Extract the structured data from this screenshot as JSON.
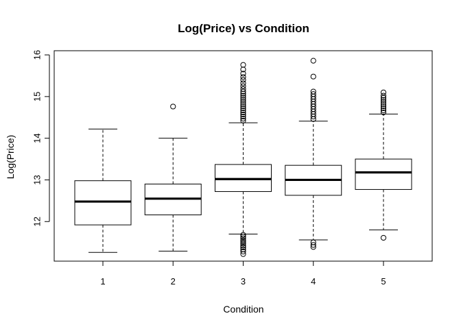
{
  "chart_data": {
    "type": "boxplot",
    "title": "Log(Price) vs Condition",
    "xlabel": "Condition",
    "ylabel": "Log(Price)",
    "ylim": [
      11.05,
      16.1
    ],
    "yticks": [
      "12",
      "13",
      "14",
      "15",
      "16"
    ],
    "categories": [
      "1",
      "2",
      "3",
      "4",
      "5"
    ],
    "grid": false,
    "boxes": [
      {
        "category": "1",
        "whisker_low": 11.26,
        "q1": 11.92,
        "median": 12.48,
        "q3": 12.98,
        "whisker_high": 14.22,
        "outliers": []
      },
      {
        "category": "2",
        "whisker_low": 11.29,
        "q1": 12.16,
        "median": 12.55,
        "q3": 12.9,
        "whisker_high": 14.0,
        "outliers": [
          14.76
        ]
      },
      {
        "category": "3",
        "whisker_low": 11.7,
        "q1": 12.72,
        "median": 13.02,
        "q3": 13.37,
        "whisker_high": 14.37,
        "outliers": [
          11.22,
          11.28,
          11.33,
          11.38,
          11.42,
          11.47,
          11.51,
          11.55,
          11.6,
          11.64,
          11.68,
          14.42,
          14.47,
          14.52,
          14.57,
          14.62,
          14.67,
          14.72,
          14.77,
          14.82,
          14.87,
          14.92,
          14.97,
          15.02,
          15.07,
          15.12,
          15.18,
          15.25,
          15.32,
          15.4,
          15.47,
          15.55,
          15.65,
          15.76
        ]
      },
      {
        "category": "4",
        "whisker_low": 11.56,
        "q1": 12.63,
        "median": 13.0,
        "q3": 13.35,
        "whisker_high": 14.41,
        "outliers": [
          11.39,
          11.44,
          11.5,
          14.46,
          14.52,
          14.58,
          14.64,
          14.7,
          14.76,
          14.82,
          14.88,
          14.94,
          15.0,
          15.06,
          15.12,
          15.48,
          15.86
        ]
      },
      {
        "category": "5",
        "whisker_low": 11.8,
        "q1": 12.77,
        "median": 13.18,
        "q3": 13.5,
        "whisker_high": 14.58,
        "outliers": [
          11.61,
          14.62,
          14.67,
          14.72,
          14.77,
          14.82,
          14.87,
          14.92,
          14.97,
          15.02,
          15.1
        ]
      }
    ]
  }
}
